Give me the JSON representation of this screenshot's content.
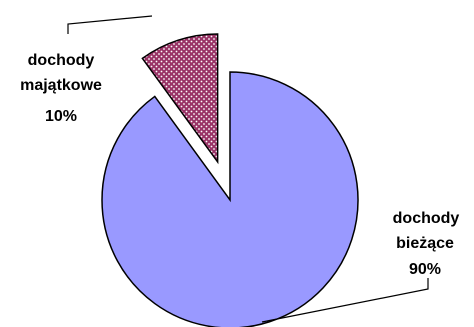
{
  "chart_data": {
    "type": "pie",
    "series": [
      {
        "values": [
          90,
          10
        ],
        "categories": [
          "dochody bieżące",
          "dochody majątkowe"
        ]
      }
    ],
    "labels": [
      {
        "line1": "dochody",
        "line2": "bieżące",
        "pct": "90%"
      },
      {
        "line1": "dochody",
        "line2": "majątkowe",
        "pct": "10%"
      }
    ],
    "colors": [
      "#9999ff",
      "#993366"
    ],
    "exploded": [
      false,
      true
    ],
    "pattern": [
      "solid",
      "dotted"
    ],
    "legend": "none"
  }
}
